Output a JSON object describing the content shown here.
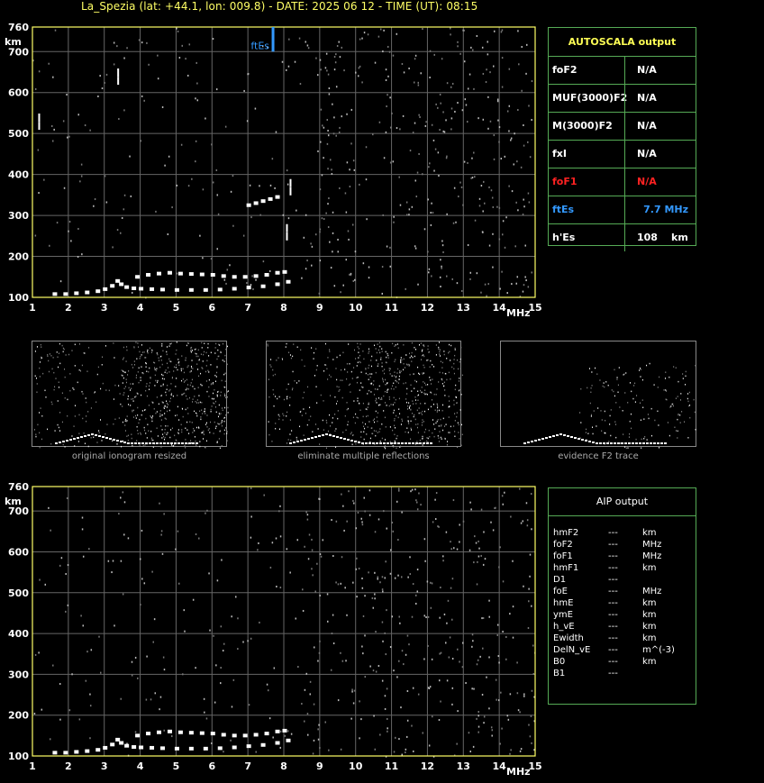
{
  "header": {
    "title": "La_Spezia (lat: +44.1, lon: 009.8) - DATE: 2025 06 12 - TIME (UT): 08:15"
  },
  "colors": {
    "axis": "#ffff66",
    "grid": "#666666",
    "panel_border": "#55aa55",
    "autoscala_title": "#ffff55",
    "fof1": "#ff2222",
    "ftes": "#3399ff"
  },
  "chart_data": [
    {
      "id": "main-ionogram",
      "type": "scatter",
      "title": "",
      "xlabel": "MHz",
      "ylabel": "km",
      "xlim": [
        1,
        15
      ],
      "ylim": [
        100,
        760
      ],
      "grid": true,
      "x_ticks": [
        "1",
        "2",
        "3",
        "4",
        "5",
        "6",
        "7",
        "8",
        "9",
        "10",
        "11",
        "12",
        "13",
        "14",
        "15"
      ],
      "y_ticks": [
        "100",
        "200",
        "300",
        "400",
        "500",
        "600",
        "700",
        "760"
      ],
      "marker": {
        "label": "ftEs",
        "x": 7.7
      },
      "series": [
        {
          "points": [
            [
              1.6,
              108
            ],
            [
              1.9,
              108
            ],
            [
              2.2,
              110
            ],
            [
              2.5,
              112
            ],
            [
              2.8,
              115
            ],
            [
              3.0,
              120
            ],
            [
              3.2,
              128
            ],
            [
              3.35,
              140
            ],
            [
              3.45,
              132
            ],
            [
              3.6,
              125
            ],
            [
              3.8,
              122
            ],
            [
              4.0,
              121
            ],
            [
              4.3,
              120
            ],
            [
              4.6,
              119
            ],
            [
              5.0,
              118
            ],
            [
              5.4,
              118
            ],
            [
              5.8,
              118
            ],
            [
              6.2,
              119
            ],
            [
              6.6,
              121
            ],
            [
              7.0,
              124
            ],
            [
              7.4,
              127
            ],
            [
              7.8,
              132
            ],
            [
              8.1,
              138
            ]
          ]
        },
        {
          "points": [
            [
              3.9,
              150
            ],
            [
              4.2,
              155
            ],
            [
              4.5,
              158
            ],
            [
              4.8,
              160
            ],
            [
              5.1,
              158
            ],
            [
              5.4,
              157
            ],
            [
              5.7,
              156
            ],
            [
              6.0,
              155
            ],
            [
              6.3,
              152
            ],
            [
              6.6,
              150
            ],
            [
              6.9,
              150
            ],
            [
              7.2,
              152
            ],
            [
              7.5,
              155
            ],
            [
              7.8,
              160
            ],
            [
              8.0,
              162
            ]
          ]
        },
        {
          "points": [
            [
              7.0,
              325
            ],
            [
              7.2,
              330
            ],
            [
              7.4,
              335
            ],
            [
              7.6,
              340
            ],
            [
              7.8,
              345
            ]
          ]
        },
        {
          "points": [
            [
              1.2,
              540
            ],
            [
              1.2,
              520
            ],
            [
              3.4,
              650
            ],
            [
              3.4,
              630
            ],
            [
              8.2,
              380
            ],
            [
              8.2,
              360
            ],
            [
              8.1,
              270
            ],
            [
              8.1,
              250
            ]
          ]
        }
      ]
    },
    {
      "id": "aip-ionogram",
      "type": "scatter",
      "title": "",
      "xlabel": "MHz",
      "ylabel": "km",
      "xlim": [
        1,
        15
      ],
      "ylim": [
        100,
        760
      ],
      "grid": true,
      "x_ticks": [
        "1",
        "2",
        "3",
        "4",
        "5",
        "6",
        "7",
        "8",
        "9",
        "10",
        "11",
        "12",
        "13",
        "14",
        "15"
      ],
      "y_ticks": [
        "100",
        "200",
        "300",
        "400",
        "500",
        "600",
        "700",
        "760"
      ],
      "series": [
        {
          "points": [
            [
              1.6,
              108
            ],
            [
              1.9,
              108
            ],
            [
              2.2,
              110
            ],
            [
              2.5,
              112
            ],
            [
              2.8,
              115
            ],
            [
              3.0,
              120
            ],
            [
              3.2,
              128
            ],
            [
              3.35,
              140
            ],
            [
              3.45,
              132
            ],
            [
              3.6,
              125
            ],
            [
              3.8,
              122
            ],
            [
              4.0,
              121
            ],
            [
              4.3,
              120
            ],
            [
              4.6,
              119
            ],
            [
              5.0,
              118
            ],
            [
              5.4,
              118
            ],
            [
              5.8,
              118
            ],
            [
              6.2,
              119
            ],
            [
              6.6,
              121
            ],
            [
              7.0,
              124
            ],
            [
              7.4,
              127
            ],
            [
              7.8,
              132
            ],
            [
              8.1,
              138
            ]
          ]
        },
        {
          "points": [
            [
              3.9,
              150
            ],
            [
              4.2,
              155
            ],
            [
              4.5,
              158
            ],
            [
              4.8,
              160
            ],
            [
              5.1,
              158
            ],
            [
              5.4,
              157
            ],
            [
              5.7,
              156
            ],
            [
              6.0,
              155
            ],
            [
              6.3,
              152
            ],
            [
              6.6,
              150
            ],
            [
              6.9,
              150
            ],
            [
              7.2,
              152
            ],
            [
              7.5,
              155
            ],
            [
              7.8,
              160
            ],
            [
              8.0,
              162
            ]
          ]
        }
      ]
    }
  ],
  "thumbnails": [
    {
      "caption": "original ionogram resized"
    },
    {
      "caption": "eliminate multiple reflections"
    },
    {
      "caption": "evidence F2 trace"
    }
  ],
  "autoscala": {
    "title": "AUTOSCALA output",
    "rows": [
      {
        "label": "foF2",
        "value": "N/A",
        "unit": ""
      },
      {
        "label": "MUF(3000)F2",
        "value": "N/A",
        "unit": ""
      },
      {
        "label": "M(3000)F2",
        "value": "N/A",
        "unit": ""
      },
      {
        "label": "fxI",
        "value": "N/A",
        "unit": ""
      },
      {
        "label": "foF1",
        "value": "N/A",
        "unit": ""
      },
      {
        "label": "ftEs",
        "value": "7.7 MHz",
        "unit": ""
      },
      {
        "label": "h'Es",
        "value": "108",
        "unit": "km"
      }
    ]
  },
  "aip": {
    "title": "AIP output",
    "rows": [
      {
        "name": "hmF2",
        "value": "---",
        "unit": "km"
      },
      {
        "name": "foF2",
        "value": "---",
        "unit": "MHz"
      },
      {
        "name": "foF1",
        "value": "---",
        "unit": "MHz"
      },
      {
        "name": "hmF1",
        "value": "---",
        "unit": "km"
      },
      {
        "name": "D1",
        "value": "---",
        "unit": ""
      },
      {
        "name": "foE",
        "value": "---",
        "unit": "MHz"
      },
      {
        "name": "hmE",
        "value": "---",
        "unit": "km"
      },
      {
        "name": "ymE",
        "value": "---",
        "unit": "km"
      },
      {
        "name": "h_vE",
        "value": "---",
        "unit": "km"
      },
      {
        "name": "Ewidth",
        "value": "---",
        "unit": "km"
      },
      {
        "name": "DelN_vE",
        "value": "---",
        "unit": "m^(-3)"
      },
      {
        "name": "B0",
        "value": "---",
        "unit": "km"
      },
      {
        "name": "B1",
        "value": "---",
        "unit": ""
      }
    ]
  }
}
